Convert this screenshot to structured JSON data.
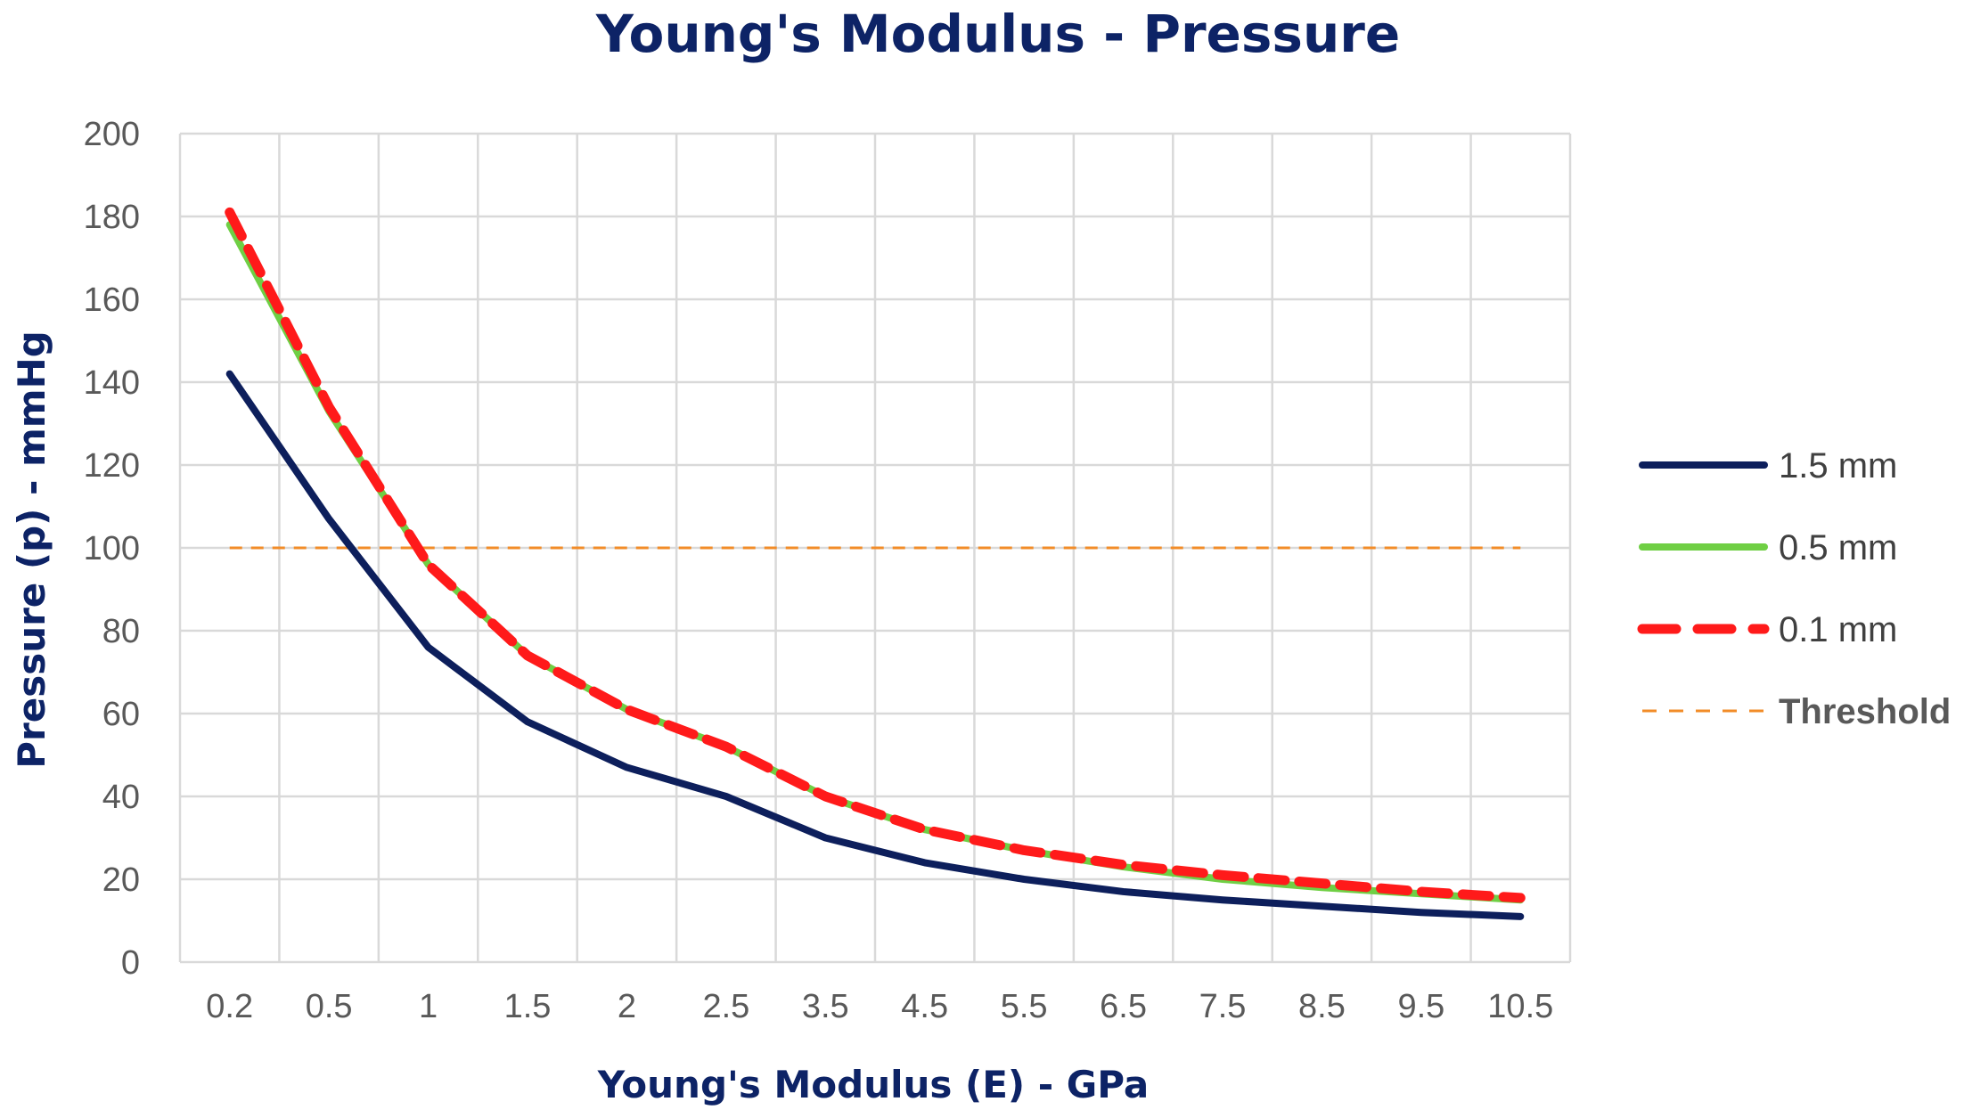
{
  "chart_data": {
    "type": "line",
    "title": "Young's Modulus - Pressure",
    "xlabel": "Young's Modulus (E) - GPa",
    "ylabel": "Pressure (p) - mmHg",
    "categories": [
      "0.2",
      "0.5",
      "1",
      "1.5",
      "2",
      "2.5",
      "3.5",
      "4.5",
      "5.5",
      "6.5",
      "7.5",
      "8.5",
      "9.5",
      "10.5"
    ],
    "ylim": [
      0,
      200
    ],
    "yticks": [
      "0",
      "20",
      "40",
      "60",
      "80",
      "100",
      "120",
      "140",
      "160",
      "180",
      "200"
    ],
    "grid": true,
    "legend_position": "right",
    "series": [
      {
        "name": "1.5 mm",
        "color": "#0d1f5c",
        "style": "solid",
        "values": [
          142,
          107,
          76,
          58,
          47,
          40,
          30,
          24,
          20,
          17,
          15,
          13.5,
          12,
          11
        ]
      },
      {
        "name": "0.5 mm",
        "color": "#6fcf44",
        "style": "solid",
        "values": [
          178,
          133,
          96,
          74,
          61,
          52,
          40,
          32,
          27,
          23,
          20,
          18,
          16.5,
          15
        ]
      },
      {
        "name": "0.1 mm",
        "color": "#ff1a1a",
        "style": "dashed",
        "values": [
          181,
          134,
          96,
          74,
          61,
          52,
          40,
          32,
          27,
          23.5,
          21,
          19,
          17,
          15.5
        ]
      },
      {
        "name": "Threshold",
        "color": "#f28c28",
        "style": "dotted",
        "values": [
          100,
          100,
          100,
          100,
          100,
          100,
          100,
          100,
          100,
          100,
          100,
          100,
          100,
          100
        ]
      }
    ]
  }
}
